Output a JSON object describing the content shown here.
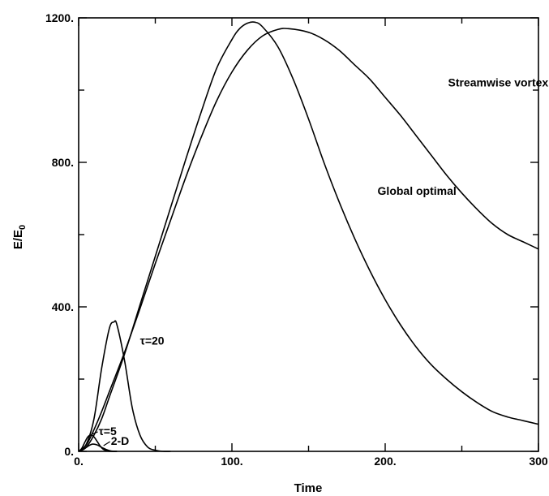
{
  "chart_data": {
    "type": "line",
    "title": "",
    "xlabel": "Time",
    "ylabel": "E/E",
    "ylabel_subscript": "0",
    "xlim": [
      0,
      300
    ],
    "ylim": [
      0,
      1200
    ],
    "grid": false,
    "x_ticks": [
      0,
      100,
      200,
      300
    ],
    "x_tick_labels": [
      "0.",
      "100.",
      "200.",
      "300"
    ],
    "y_ticks": [
      0,
      400,
      800,
      1200
    ],
    "y_tick_labels": [
      "0.",
      "400.",
      "800.",
      "1200."
    ],
    "series": [
      {
        "name": "Streamwise vortex",
        "x": [
          0,
          5,
          10,
          15,
          20,
          30,
          40,
          50,
          60,
          70,
          80,
          90,
          100,
          110,
          120,
          130,
          137,
          150,
          160,
          170,
          180,
          190,
          200,
          210,
          220,
          230,
          240,
          250,
          260,
          270,
          280,
          290,
          300
        ],
        "y": [
          0,
          18,
          60,
          110,
          165,
          275,
          395,
          520,
          640,
          760,
          870,
          970,
          1050,
          1110,
          1150,
          1168,
          1170,
          1160,
          1140,
          1110,
          1070,
          1030,
          980,
          930,
          875,
          820,
          765,
          715,
          670,
          630,
          600,
          580,
          560
        ]
      },
      {
        "name": "Global optimal",
        "x": [
          0,
          5,
          10,
          15,
          20,
          30,
          40,
          50,
          60,
          70,
          80,
          90,
          100,
          105,
          110,
          115,
          120,
          130,
          140,
          150,
          160,
          170,
          180,
          190,
          200,
          210,
          220,
          230,
          240,
          250,
          260,
          270,
          280,
          290,
          300
        ],
        "y": [
          0,
          12,
          45,
          90,
          150,
          270,
          405,
          540,
          675,
          810,
          940,
          1060,
          1140,
          1170,
          1185,
          1188,
          1175,
          1120,
          1030,
          920,
          800,
          690,
          590,
          500,
          420,
          350,
          290,
          240,
          200,
          165,
          135,
          110,
          95,
          85,
          75
        ]
      },
      {
        "name": "τ=20",
        "x": [
          0,
          5,
          10,
          15,
          20,
          23,
          25,
          30,
          35,
          40,
          45,
          50,
          55,
          60
        ],
        "y": [
          0,
          20,
          90,
          230,
          340,
          358,
          350,
          250,
          120,
          45,
          12,
          3,
          0,
          0
        ]
      },
      {
        "name": "τ=5",
        "x": [
          0,
          2,
          4,
          6,
          8,
          10,
          12,
          14,
          16,
          18,
          20,
          25
        ],
        "y": [
          0,
          8,
          25,
          40,
          45,
          40,
          28,
          15,
          6,
          2,
          0,
          0
        ]
      },
      {
        "name": "2-D",
        "x": [
          0,
          3,
          6,
          9,
          12,
          15,
          18,
          21,
          25
        ],
        "y": [
          0,
          5,
          14,
          20,
          18,
          11,
          5,
          1,
          0
        ]
      }
    ],
    "annotations": [
      {
        "text": "Streamwise vortex",
        "x": 241,
        "y": 1010
      },
      {
        "text": "Global optimal",
        "x": 195,
        "y": 710
      },
      {
        "text": "τ=20",
        "x": 40,
        "y": 295
      },
      {
        "text": "τ=5",
        "x": 13,
        "y": 45
      },
      {
        "text": "2-D",
        "x": 21,
        "y": 18
      }
    ]
  }
}
